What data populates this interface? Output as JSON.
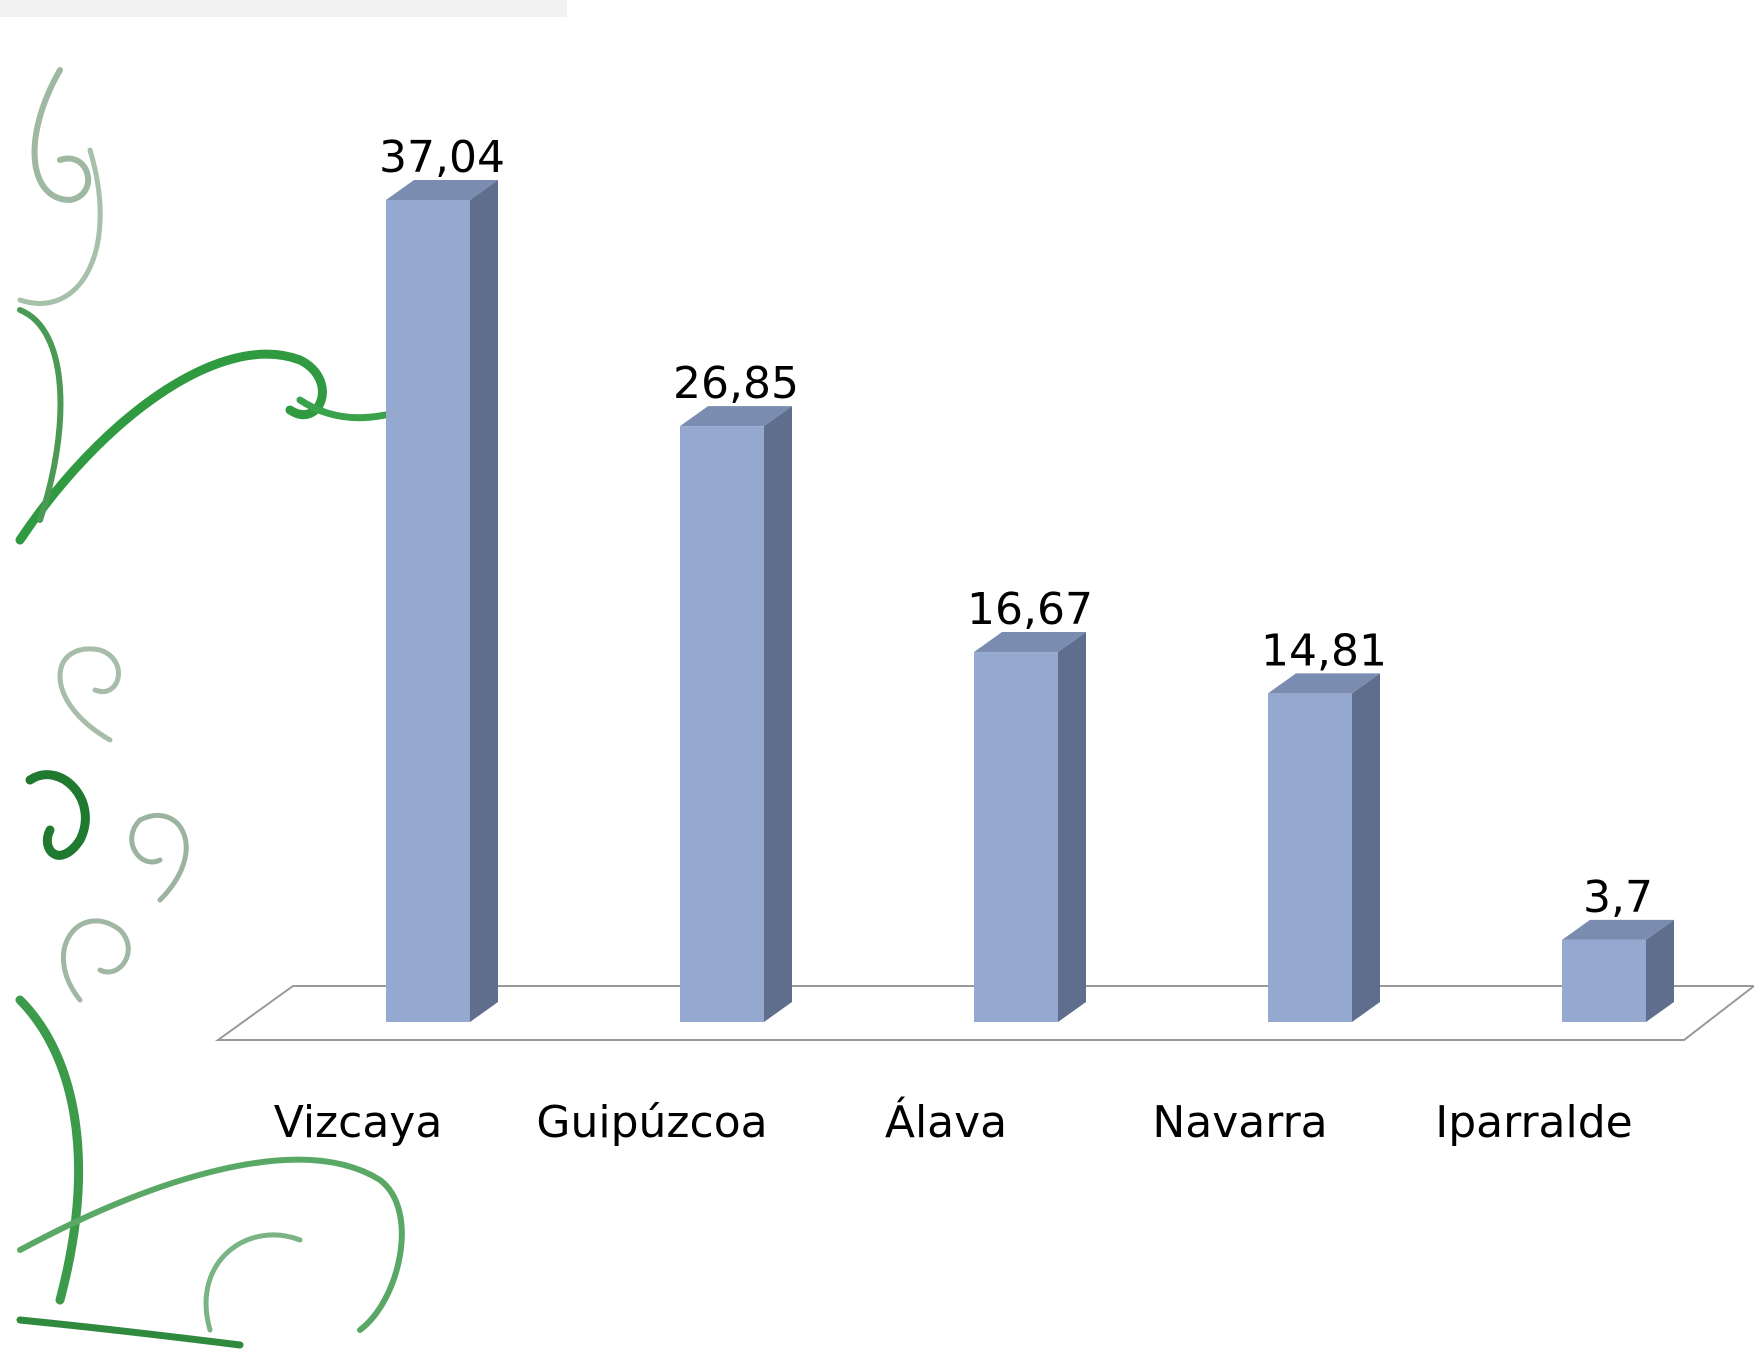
{
  "chart_data": {
    "type": "bar3d",
    "categories": [
      "Vizcaya",
      "Guipúzcoa",
      "Álava",
      "Navarra",
      "Iparralde"
    ],
    "values": [
      37.04,
      26.85,
      16.67,
      14.81,
      3.7
    ],
    "value_labels": [
      "37,04",
      "26,85",
      "16,67",
      "14,81",
      "3,7"
    ],
    "color": "#95a9d0"
  }
}
